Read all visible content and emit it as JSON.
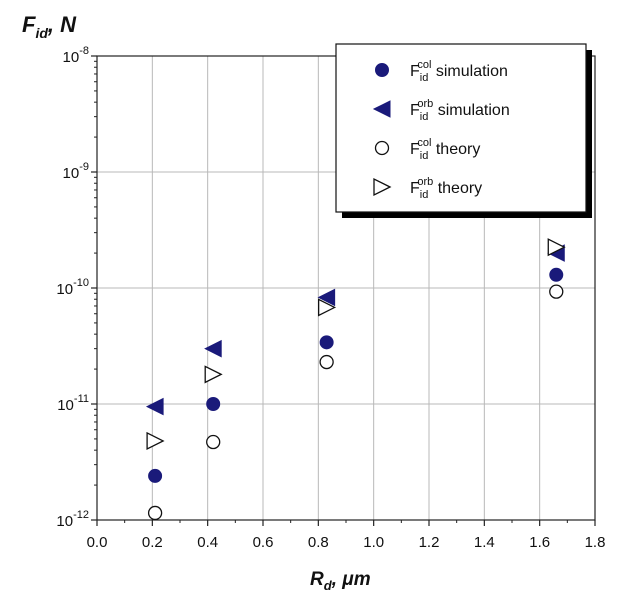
{
  "chart_data": {
    "type": "scatter",
    "title": "",
    "xlabel": {
      "main": "R",
      "sub": "d",
      "suffix": ", μm"
    },
    "ylabel": {
      "main": "F",
      "sub": "id",
      "suffix": ", N"
    },
    "xlim": [
      0.0,
      1.8
    ],
    "ylim": [
      1e-12,
      1e-08
    ],
    "yscale": "log",
    "grid": true,
    "legend_position": "top-right",
    "x_ticks": [
      "0.0",
      "0.2",
      "0.4",
      "0.6",
      "0.8",
      "1.0",
      "1.2",
      "1.4",
      "1.6",
      "1.8"
    ],
    "y_ticks": [
      {
        "base": "10",
        "exp": "-12"
      },
      {
        "base": "10",
        "exp": "-11"
      },
      {
        "base": "10",
        "exp": "-10"
      },
      {
        "base": "10",
        "exp": "-9"
      },
      {
        "base": "10",
        "exp": "-8"
      }
    ],
    "series": [
      {
        "name": {
          "base": "F",
          "sub": "id",
          "sup": "col",
          "rest": " simulation"
        },
        "marker": "circle-filled",
        "color": "#1a1a7a",
        "x": [
          0.21,
          0.42,
          0.83,
          1.66
        ],
        "y": [
          2.4e-12,
          1e-11,
          3.4e-11,
          1.3e-10
        ]
      },
      {
        "name": {
          "base": "F",
          "sub": "id",
          "sup": "orb",
          "rest": " simulation"
        },
        "marker": "triangle-left-filled",
        "color": "#1a1a7a",
        "x": [
          0.21,
          0.42,
          0.83,
          1.66
        ],
        "y": [
          9.5e-12,
          3e-11,
          8.3e-11,
          2e-10
        ]
      },
      {
        "name": {
          "base": "F",
          "sub": "id",
          "sup": "col",
          "rest": " theory"
        },
        "marker": "circle-open",
        "color": "#111111",
        "x": [
          0.21,
          0.42,
          0.83,
          1.66
        ],
        "y": [
          1.15e-12,
          4.7e-12,
          2.3e-11,
          9.3e-11
        ]
      },
      {
        "name": {
          "base": "F",
          "sub": "id",
          "sup": "orb",
          "rest": " theory"
        },
        "marker": "triangle-right-open",
        "color": "#111111",
        "x": [
          0.21,
          0.42,
          0.83,
          1.66
        ],
        "y": [
          4.8e-12,
          1.8e-11,
          6.8e-11,
          2.25e-10
        ]
      }
    ]
  }
}
